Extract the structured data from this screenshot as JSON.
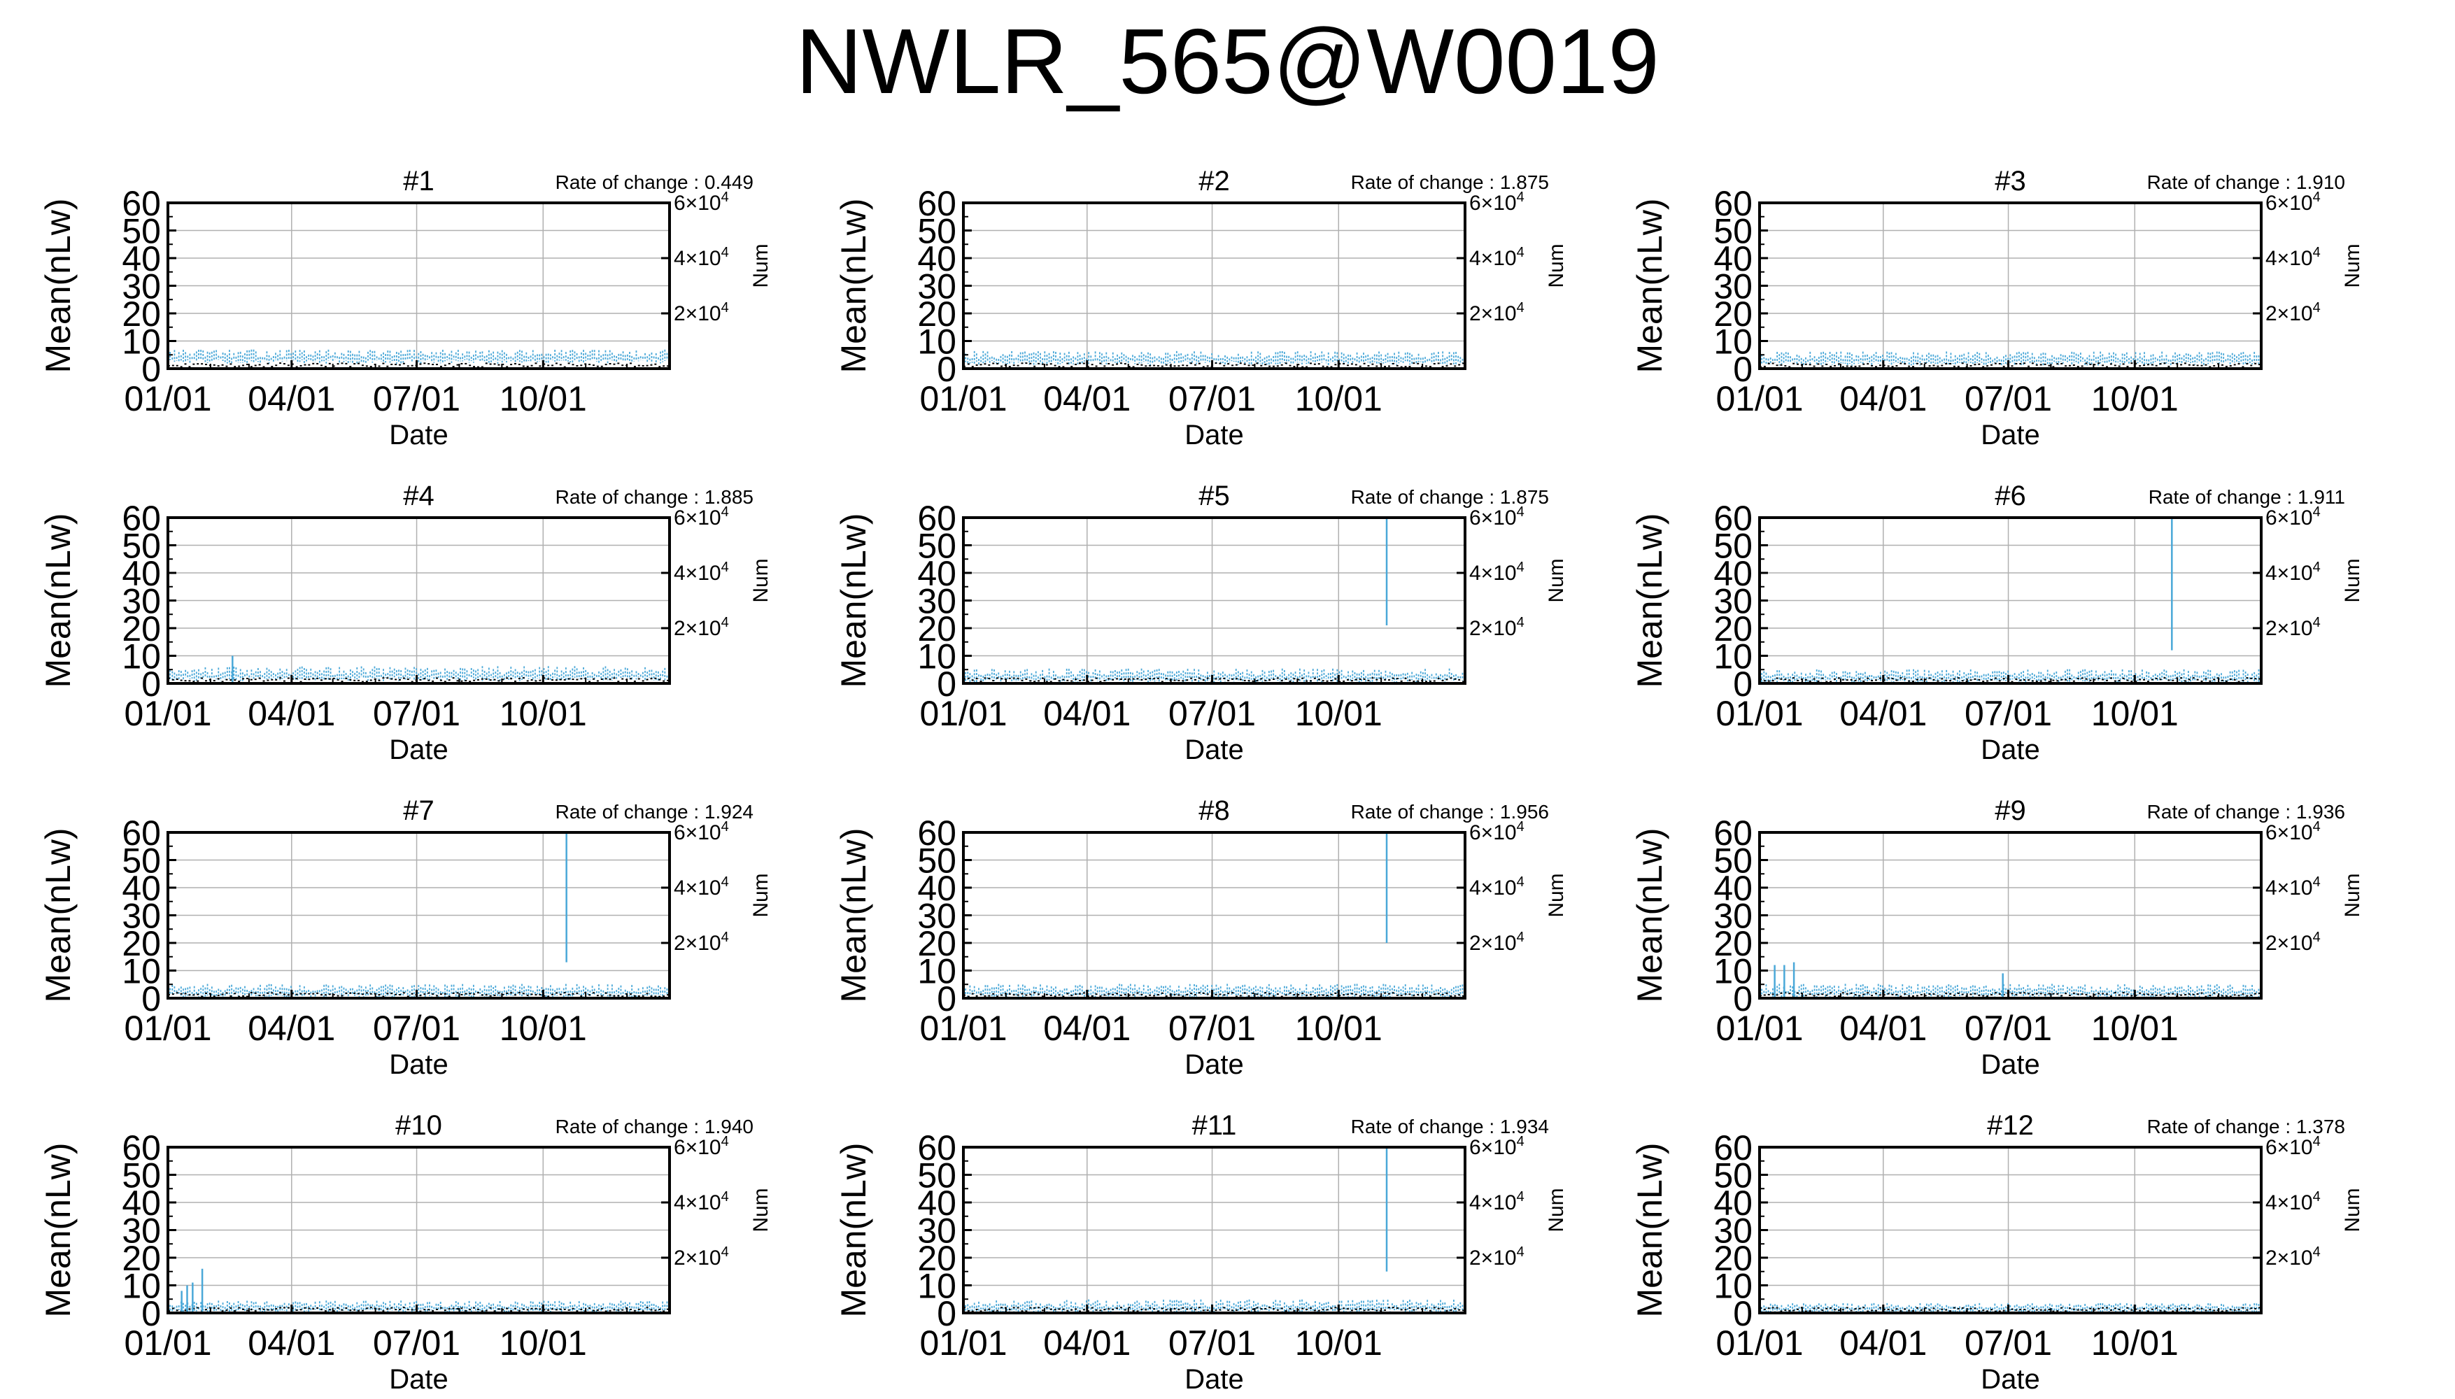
{
  "title": "NWLR_565@W0019",
  "axes_text": {
    "xlabel": "Date",
    "ylabel": "Mean(nLw)",
    "y2label": "Num",
    "rate_prefix": "Rate of change : ",
    "xticks": [
      "01/01",
      "04/01",
      "07/01",
      "10/01"
    ],
    "yticks": [
      "0",
      "10",
      "20",
      "30",
      "40",
      "50",
      "60"
    ],
    "y2ticks": [
      {
        "mant": "2",
        "exp": "4"
      },
      {
        "mant": "4",
        "exp": "4"
      },
      {
        "mant": "6",
        "exp": "4"
      }
    ]
  },
  "colors": {
    "mean_series": "#4aa8d8",
    "num_series": "#000000",
    "grid": "#b0b0b0",
    "axis": "#000000"
  },
  "chart_data": [
    {
      "type": "line",
      "title": "#1",
      "rate_of_change": "0.449",
      "xlabel": "Date",
      "ylabel": "Mean(nLw)",
      "y2label": "Num",
      "ylim": [
        0,
        60
      ],
      "y2lim": [
        0,
        60000
      ],
      "xlim": [
        "01/01",
        "12/31"
      ],
      "grid": true,
      "baseline": 4.5,
      "spread": 3.0,
      "spikes": []
    },
    {
      "type": "line",
      "title": "#2",
      "rate_of_change": "1.875",
      "xlabel": "Date",
      "ylabel": "Mean(nLw)",
      "y2label": "Num",
      "ylim": [
        0,
        60
      ],
      "y2lim": [
        0,
        60000
      ],
      "xlim": [
        "01/01",
        "12/31"
      ],
      "grid": true,
      "baseline": 4.0,
      "spread": 3.0,
      "spikes": []
    },
    {
      "type": "line",
      "title": "#3",
      "rate_of_change": "1.910",
      "xlabel": "Date",
      "ylabel": "Mean(nLw)",
      "y2label": "Num",
      "ylim": [
        0,
        60
      ],
      "y2lim": [
        0,
        60000
      ],
      "xlim": [
        "01/01",
        "12/31"
      ],
      "grid": true,
      "baseline": 3.8,
      "spread": 3.0,
      "spikes": []
    },
    {
      "type": "line",
      "title": "#4",
      "rate_of_change": "1.885",
      "xlabel": "Date",
      "ylabel": "Mean(nLw)",
      "y2label": "Num",
      "ylim": [
        0,
        60
      ],
      "y2lim": [
        0,
        60000
      ],
      "xlim": [
        "01/01",
        "12/31"
      ],
      "grid": true,
      "baseline": 3.5,
      "spread": 3.5,
      "spikes": [
        {
          "date": "02/17",
          "low": 0,
          "high": 10
        }
      ]
    },
    {
      "type": "line",
      "title": "#5",
      "rate_of_change": "1.875",
      "xlabel": "Date",
      "ylabel": "Mean(nLw)",
      "y2label": "Num",
      "ylim": [
        0,
        60
      ],
      "y2lim": [
        0,
        60000
      ],
      "xlim": [
        "01/01",
        "12/31"
      ],
      "grid": true,
      "baseline": 3.0,
      "spread": 3.0,
      "spikes": [
        {
          "date": "11/05",
          "low": 21,
          "high": 60
        }
      ]
    },
    {
      "type": "line",
      "title": "#6",
      "rate_of_change": "1.911",
      "xlabel": "Date",
      "ylabel": "Mean(nLw)",
      "y2label": "Num",
      "ylim": [
        0,
        60
      ],
      "y2lim": [
        0,
        60000
      ],
      "xlim": [
        "01/01",
        "12/31"
      ],
      "grid": true,
      "baseline": 2.8,
      "spread": 3.0,
      "spikes": [
        {
          "date": "10/28",
          "low": 12,
          "high": 60
        }
      ]
    },
    {
      "type": "line",
      "title": "#7",
      "rate_of_change": "1.924",
      "xlabel": "Date",
      "ylabel": "Mean(nLw)",
      "y2label": "Num",
      "ylim": [
        0,
        60
      ],
      "y2lim": [
        0,
        60000
      ],
      "xlim": [
        "01/01",
        "12/31"
      ],
      "grid": true,
      "baseline": 2.8,
      "spread": 3.0,
      "spikes": [
        {
          "date": "10/18",
          "low": 13,
          "high": 60
        }
      ]
    },
    {
      "type": "line",
      "title": "#8",
      "rate_of_change": "1.956",
      "xlabel": "Date",
      "ylabel": "Mean(nLw)",
      "y2label": "Num",
      "ylim": [
        0,
        60
      ],
      "y2lim": [
        0,
        60000
      ],
      "xlim": [
        "01/01",
        "12/31"
      ],
      "grid": true,
      "baseline": 2.8,
      "spread": 3.0,
      "spikes": [
        {
          "date": "11/05",
          "low": 20,
          "high": 60
        }
      ]
    },
    {
      "type": "line",
      "title": "#9",
      "rate_of_change": "1.936",
      "xlabel": "Date",
      "ylabel": "Mean(nLw)",
      "y2label": "Num",
      "ylim": [
        0,
        60
      ],
      "y2lim": [
        0,
        60000
      ],
      "xlim": [
        "01/01",
        "12/31"
      ],
      "grid": true,
      "baseline": 2.8,
      "spread": 3.0,
      "spikes": [
        {
          "date": "01/12",
          "low": 0,
          "high": 12
        },
        {
          "date": "01/19",
          "low": 0,
          "high": 12
        },
        {
          "date": "01/26",
          "low": 0,
          "high": 13
        },
        {
          "date": "06/27",
          "low": 0,
          "high": 9
        }
      ]
    },
    {
      "type": "line",
      "title": "#10",
      "rate_of_change": "1.940",
      "xlabel": "Date",
      "ylabel": "Mean(nLw)",
      "y2label": "Num",
      "ylim": [
        0,
        60
      ],
      "y2lim": [
        0,
        60000
      ],
      "xlim": [
        "01/01",
        "12/31"
      ],
      "grid": true,
      "baseline": 2.5,
      "spread": 2.5,
      "spikes": [
        {
          "date": "01/11",
          "low": 0,
          "high": 8
        },
        {
          "date": "01/15",
          "low": 0,
          "high": 10
        },
        {
          "date": "01/19",
          "low": 0,
          "high": 11
        },
        {
          "date": "01/26",
          "low": 0,
          "high": 16
        }
      ]
    },
    {
      "type": "line",
      "title": "#11",
      "rate_of_change": "1.934",
      "xlabel": "Date",
      "ylabel": "Mean(nLw)",
      "y2label": "Num",
      "ylim": [
        0,
        60
      ],
      "y2lim": [
        0,
        60000
      ],
      "xlim": [
        "01/01",
        "12/31"
      ],
      "grid": true,
      "baseline": 2.5,
      "spread": 3.0,
      "spikes": [
        {
          "date": "11/05",
          "low": 15,
          "high": 60
        }
      ]
    },
    {
      "type": "line",
      "title": "#12",
      "rate_of_change": "1.378",
      "xlabel": "Date",
      "ylabel": "Mean(nLw)",
      "y2label": "Num",
      "ylim": [
        0,
        60
      ],
      "y2lim": [
        0,
        60000
      ],
      "xlim": [
        "01/01",
        "12/31"
      ],
      "grid": true,
      "baseline": 2.0,
      "spread": 2.0,
      "spikes": []
    }
  ]
}
